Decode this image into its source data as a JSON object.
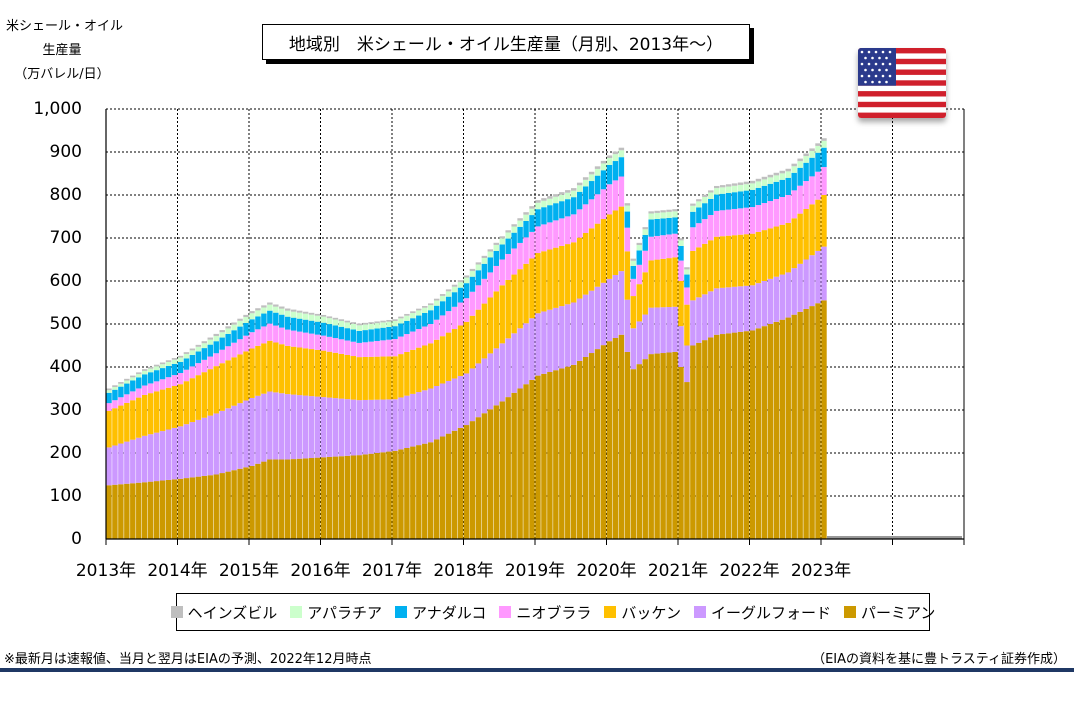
{
  "title": "地域別　米シェール・オイル生産量（月別、2013年～）",
  "y_axis": {
    "label_lines": [
      "米シェール・オイル",
      "生産量",
      "（万バレル/日）"
    ],
    "ticks": [
      "0",
      "100",
      "200",
      "300",
      "400",
      "500",
      "600",
      "700",
      "800",
      "900",
      "1,000"
    ]
  },
  "x_axis": {
    "ticks": [
      "2013年",
      "2014年",
      "2015年",
      "2016年",
      "2017年",
      "2018年",
      "2019年",
      "2020年",
      "2021年",
      "2022年",
      "2023年"
    ]
  },
  "legend": [
    {
      "label": "ヘインズビル",
      "color": "#bfbfbf"
    },
    {
      "label": "アパラチア",
      "color": "#ccffcc"
    },
    {
      "label": "アナダルコ",
      "color": "#00b0f0"
    },
    {
      "label": "ニオブララ",
      "color": "#ff99ff"
    },
    {
      "label": "バッケン",
      "color": "#ffc000"
    },
    {
      "label": "イーグルフォード",
      "color": "#cc99ff"
    },
    {
      "label": "パーミアン",
      "color": "#cc9900"
    }
  ],
  "footnote": "※最新月は速報値、当月と翌月はEIAの予測、2022年12月時点",
  "source": "（EIAの資料を基に豊トラスティ証券作成）",
  "flag": {
    "name": "us-flag-icon"
  },
  "chart_data": {
    "type": "stacked-bar",
    "title": "地域別　米シェール・オイル生産量（月別、2013年～）",
    "ylabel": "米シェール・オイル生産量（万バレル/日）",
    "ylim": [
      0,
      1000
    ],
    "grid": true,
    "legend_position": "bottom",
    "x_start": "2013-01",
    "x_end": "2024-12",
    "x_points": [
      "2013-01",
      "2013-07",
      "2014-01",
      "2014-07",
      "2015-01",
      "2015-04",
      "2015-07",
      "2016-01",
      "2016-07",
      "2017-01",
      "2017-07",
      "2018-01",
      "2018-07",
      "2019-01",
      "2019-07",
      "2020-01",
      "2020-03",
      "2020-05",
      "2020-08",
      "2020-12",
      "2021-02",
      "2021-03",
      "2021-07",
      "2022-01",
      "2022-07",
      "2023-01"
    ],
    "series": [
      {
        "name": "パーミアン",
        "color": "#cc9900",
        "values": [
          125,
          132,
          140,
          150,
          170,
          185,
          185,
          190,
          195,
          205,
          225,
          265,
          320,
          380,
          405,
          460,
          475,
          395,
          430,
          435,
          365,
          450,
          475,
          485,
          515,
          555
        ]
      },
      {
        "name": "イーグルフォード",
        "color": "#cc99ff",
        "values": [
          88,
          108,
          122,
          142,
          158,
          158,
          152,
          140,
          128,
          120,
          125,
          120,
          135,
          145,
          145,
          145,
          148,
          95,
          108,
          105,
          85,
          105,
          108,
          105,
          105,
          125
        ]
      },
      {
        "name": "バッケン",
        "color": "#ffc000",
        "values": [
          85,
          95,
          98,
          110,
          115,
          118,
          112,
          108,
          100,
          100,
          105,
          120,
          135,
          140,
          140,
          150,
          150,
          75,
          110,
          115,
          95,
          115,
          120,
          120,
          115,
          120
        ]
      },
      {
        "name": "ニオブララ",
        "color": "#ff99ff",
        "values": [
          18,
          22,
          26,
          30,
          38,
          40,
          38,
          35,
          33,
          40,
          45,
          55,
          60,
          62,
          65,
          70,
          70,
          40,
          55,
          55,
          40,
          55,
          60,
          62,
          65,
          65
        ]
      },
      {
        "name": "アナダルコ",
        "color": "#00b0f0",
        "values": [
          24,
          26,
          26,
          28,
          30,
          30,
          30,
          30,
          28,
          30,
          32,
          35,
          35,
          40,
          40,
          45,
          45,
          30,
          40,
          38,
          30,
          36,
          38,
          40,
          40,
          45
        ]
      },
      {
        "name": "アパラチア",
        "color": "#ccffcc",
        "values": [
          6,
          8,
          10,
          12,
          14,
          14,
          14,
          14,
          13,
          12,
          12,
          13,
          14,
          15,
          15,
          16,
          16,
          12,
          14,
          14,
          12,
          14,
          15,
          15,
          15,
          16
        ]
      },
      {
        "name": "ヘインズビル",
        "color": "#bfbfbf",
        "values": [
          4,
          4,
          4,
          5,
          5,
          5,
          5,
          4,
          4,
          4,
          4,
          5,
          5,
          6,
          6,
          6,
          6,
          5,
          5,
          5,
          5,
          5,
          5,
          6,
          6,
          6
        ]
      }
    ]
  }
}
